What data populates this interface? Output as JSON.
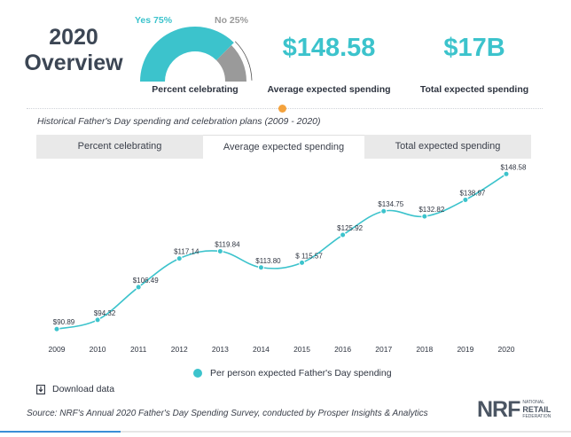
{
  "overview": {
    "title": "2020 Overview"
  },
  "gauge": {
    "yes_label": "Yes 75%",
    "no_label": "No 25%",
    "yes_pct": 75,
    "no_pct": 25,
    "yes_color": "#3cc3cc",
    "no_color": "#9a9a9a",
    "caption": "Percent celebrating"
  },
  "kpis": [
    {
      "value": "$148.58",
      "label": "Average expected spending"
    },
    {
      "value": "$17B",
      "label": "Total expected spending"
    }
  ],
  "subtitle": "Historical Father's Day spending and celebration plans (2009 - 2020)",
  "tabs": [
    {
      "label": "Percent celebrating",
      "active": false
    },
    {
      "label": "Average expected spending",
      "active": true
    },
    {
      "label": "Total expected spending",
      "active": false
    }
  ],
  "chart_data": {
    "type": "line",
    "x": [
      "2009",
      "2010",
      "2011",
      "2012",
      "2013",
      "2014",
      "2015",
      "2016",
      "2017",
      "2018",
      "2019",
      "2020"
    ],
    "series": [
      {
        "name": "Per person expected Father's Day spending",
        "values": [
          90.89,
          94.32,
          106.49,
          117.14,
          119.84,
          113.8,
          115.57,
          125.92,
          134.75,
          132.82,
          138.97,
          148.58
        ],
        "labels": [
          "$90.89",
          "$94.32",
          "$106.49",
          "$117.14",
          "$119.84",
          "$113.80",
          "$ 115.57",
          "$125.92",
          "$134.75",
          "$132.82",
          "$138.97",
          "$148.58"
        ],
        "color": "#3cc3cc"
      }
    ],
    "title": "",
    "xlabel": "",
    "ylabel": "",
    "legend": "bottom-center",
    "grid": false,
    "ylim": [
      88,
      150
    ]
  },
  "download": {
    "label": "Download data",
    "icon": "download-icon"
  },
  "source": "Source: NRF's Annual 2020 Father's Day Spending Survey, conducted by Prosper Insights & Analytics",
  "logo": {
    "mark": "NRF",
    "line1": "National",
    "line2": "Retail",
    "line3": "Federation"
  }
}
